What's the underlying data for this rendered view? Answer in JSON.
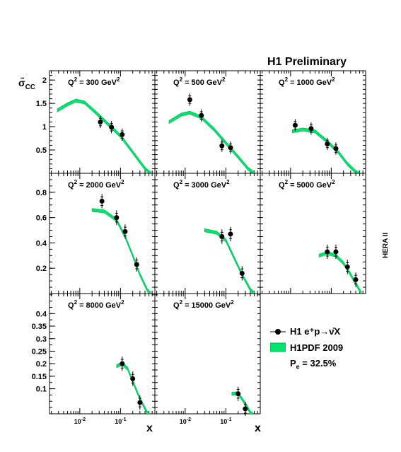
{
  "header": {
    "title": "H1 Preliminary"
  },
  "y_axis_label": {
    "base": "σ̃",
    "sub": "CC"
  },
  "side_label": "HERA II",
  "x_label": "x",
  "legend": {
    "data_label": "H1 e⁺p→ν̄X",
    "band_label": "H1PDF 2009",
    "polarisation": "P",
    "polarisation_sub": "e",
    "polarisation_value": " = 32.5%"
  },
  "colors": {
    "band": "#00e56e",
    "band_edge": "#00b050",
    "points": "#000000"
  },
  "chart_data": {
    "type": "scatter",
    "x_scale": "log",
    "x_tick_labels": {
      "p2": "10",
      "p2e": "-2",
      "p1": "10",
      "p1e": "-1"
    },
    "panels": [
      {
        "q2": "300",
        "unit": "GeV",
        "ylim": [
          0,
          2.2
        ],
        "yticks": [
          "0.5",
          "1",
          "1.5",
          "2"
        ],
        "ytick_vals": [
          0.5,
          1,
          1.5,
          2
        ],
        "points": [
          [
            0.032,
            1.1
          ],
          [
            0.06,
            0.99
          ],
          [
            0.11,
            0.83
          ]
        ],
        "curve": [
          [
            0.0028,
            1.35
          ],
          [
            0.005,
            1.48
          ],
          [
            0.008,
            1.56
          ],
          [
            0.013,
            1.52
          ],
          [
            0.025,
            1.3
          ],
          [
            0.05,
            1.05
          ],
          [
            0.1,
            0.8
          ],
          [
            0.2,
            0.45
          ],
          [
            0.4,
            0.1
          ],
          [
            0.55,
            0.0
          ]
        ]
      },
      {
        "q2": "500",
        "unit": "GeV",
        "ylim": [
          0,
          2.2
        ],
        "yticks": [],
        "ytick_vals": [],
        "points": [
          [
            0.013,
            1.58
          ],
          [
            0.025,
            1.24
          ],
          [
            0.08,
            0.59
          ],
          [
            0.13,
            0.55
          ]
        ],
        "curve": [
          [
            0.004,
            1.1
          ],
          [
            0.008,
            1.26
          ],
          [
            0.013,
            1.3
          ],
          [
            0.025,
            1.2
          ],
          [
            0.05,
            0.95
          ],
          [
            0.1,
            0.65
          ],
          [
            0.2,
            0.35
          ],
          [
            0.35,
            0.1
          ],
          [
            0.5,
            0.0
          ]
        ]
      },
      {
        "q2": "1000",
        "unit": "GeV",
        "ylim": [
          0,
          2.2
        ],
        "yticks": [],
        "ytick_vals": [],
        "points": [
          [
            0.013,
            1.03
          ],
          [
            0.032,
            0.96
          ],
          [
            0.08,
            0.63
          ],
          [
            0.13,
            0.53
          ]
        ],
        "curve": [
          [
            0.011,
            0.9
          ],
          [
            0.02,
            0.94
          ],
          [
            0.04,
            0.9
          ],
          [
            0.08,
            0.68
          ],
          [
            0.15,
            0.45
          ],
          [
            0.25,
            0.2
          ],
          [
            0.4,
            0.03
          ],
          [
            0.5,
            0.0
          ]
        ]
      },
      {
        "q2": "2000",
        "unit": "GeV",
        "ylim": [
          0,
          0.95
        ],
        "yticks": [
          "0.2",
          "0.4",
          "0.6",
          "0.8"
        ],
        "ytick_vals": [
          0.2,
          0.4,
          0.6,
          0.8
        ],
        "points": [
          [
            0.035,
            0.73
          ],
          [
            0.08,
            0.6
          ],
          [
            0.13,
            0.49
          ],
          [
            0.25,
            0.23
          ]
        ],
        "curve": [
          [
            0.02,
            0.66
          ],
          [
            0.04,
            0.65
          ],
          [
            0.08,
            0.58
          ],
          [
            0.13,
            0.45
          ],
          [
            0.2,
            0.3
          ],
          [
            0.3,
            0.15
          ],
          [
            0.45,
            0.03
          ],
          [
            0.55,
            0.0
          ]
        ]
      },
      {
        "q2": "3000",
        "unit": "GeV",
        "ylim": [
          0,
          0.95
        ],
        "yticks": [],
        "ytick_vals": [],
        "points": [
          [
            0.08,
            0.45
          ],
          [
            0.13,
            0.47
          ],
          [
            0.25,
            0.16
          ]
        ],
        "curve": [
          [
            0.03,
            0.5
          ],
          [
            0.06,
            0.48
          ],
          [
            0.1,
            0.42
          ],
          [
            0.15,
            0.3
          ],
          [
            0.25,
            0.15
          ],
          [
            0.4,
            0.03
          ],
          [
            0.5,
            0.0
          ]
        ]
      },
      {
        "q2": "5000",
        "unit": "GeV",
        "ylim": [
          0,
          0.95
        ],
        "yticks": [],
        "ytick_vals": [],
        "points": [
          [
            0.08,
            0.33
          ],
          [
            0.13,
            0.33
          ],
          [
            0.25,
            0.21
          ],
          [
            0.4,
            0.11
          ]
        ],
        "curve": [
          [
            0.05,
            0.3
          ],
          [
            0.08,
            0.32
          ],
          [
            0.13,
            0.3
          ],
          [
            0.2,
            0.24
          ],
          [
            0.3,
            0.15
          ],
          [
            0.45,
            0.05
          ],
          [
            0.55,
            0.0
          ]
        ]
      },
      {
        "q2": "8000",
        "unit": "GeV",
        "ylim": [
          0,
          0.48
        ],
        "yticks": [
          "0.1",
          "0.15",
          "0.2",
          "0.25",
          "0.3",
          "0.35",
          "0.4"
        ],
        "ytick_vals": [
          0.1,
          0.15,
          0.2,
          0.25,
          0.3,
          0.35,
          0.4
        ],
        "points": [
          [
            0.11,
            0.2
          ],
          [
            0.2,
            0.14
          ],
          [
            0.3,
            0.045
          ]
        ],
        "curve": [
          [
            0.08,
            0.19
          ],
          [
            0.11,
            0.2
          ],
          [
            0.15,
            0.18
          ],
          [
            0.2,
            0.13
          ],
          [
            0.3,
            0.06
          ],
          [
            0.45,
            0.005
          ],
          [
            0.5,
            0.0
          ]
        ]
      },
      {
        "q2": "15000",
        "unit": "GeV",
        "ylim": [
          0,
          0.48
        ],
        "yticks": [],
        "ytick_vals": [],
        "points": [
          [
            0.2,
            0.08
          ],
          [
            0.3,
            0.02
          ]
        ],
        "curve": [
          [
            0.14,
            0.08
          ],
          [
            0.2,
            0.082
          ],
          [
            0.3,
            0.04
          ],
          [
            0.4,
            0.005
          ],
          [
            0.45,
            0.0
          ]
        ]
      }
    ]
  }
}
